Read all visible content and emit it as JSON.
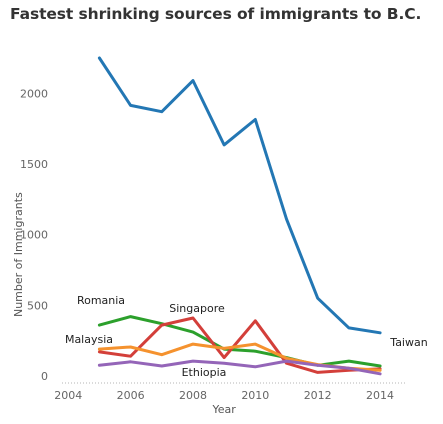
{
  "chart_data": {
    "type": "line",
    "title": "Fastest shrinking sources of immigrants to B.C.",
    "xlabel": "Year",
    "ylabel": "Number of Immigrants",
    "x": [
      2005,
      2006,
      2007,
      2008,
      2009,
      2010,
      2011,
      2012,
      2013,
      2014
    ],
    "xlim": [
      2003.8,
      2014.8
    ],
    "ylim": [
      -50,
      2420
    ],
    "x_ticks": [
      2004,
      2006,
      2008,
      2010,
      2012,
      2014
    ],
    "y_ticks": [
      0,
      500,
      1000,
      1500,
      2000
    ],
    "y_tick_labels": [
      "0",
      "500",
      "1000",
      "1500",
      "2000"
    ],
    "grid": false,
    "series": [
      {
        "name": "Taiwan",
        "color": "#2377b4",
        "values": [
          2250,
          1915,
          1870,
          2090,
          1635,
          1815,
          1110,
          550,
          340,
          305
        ]
      },
      {
        "name": "Romania",
        "color": "#2ca02c",
        "values": [
          360,
          420,
          370,
          310,
          190,
          175,
          130,
          75,
          105,
          70
        ]
      },
      {
        "name": "Singapore",
        "color": "#d33f3a",
        "values": [
          170,
          140,
          360,
          410,
          130,
          390,
          90,
          25,
          40,
          50
        ]
      },
      {
        "name": "Malaysia",
        "color": "#f5922e",
        "values": [
          190,
          205,
          150,
          225,
          195,
          225,
          125,
          80,
          55,
          40
        ]
      },
      {
        "name": "Ethiopia",
        "color": "#9465b8",
        "values": [
          75,
          100,
          70,
          105,
          90,
          65,
          105,
          75,
          55,
          15
        ]
      }
    ],
    "annotations": [
      {
        "text": "Romania",
        "series": "Romania"
      },
      {
        "text": "Singapore",
        "series": "Singapore"
      },
      {
        "text": "Malaysia",
        "series": "Malaysia"
      },
      {
        "text": "Ethiopia",
        "series": "Ethiopia"
      },
      {
        "text": "Taiwan",
        "series": "Taiwan"
      }
    ]
  }
}
